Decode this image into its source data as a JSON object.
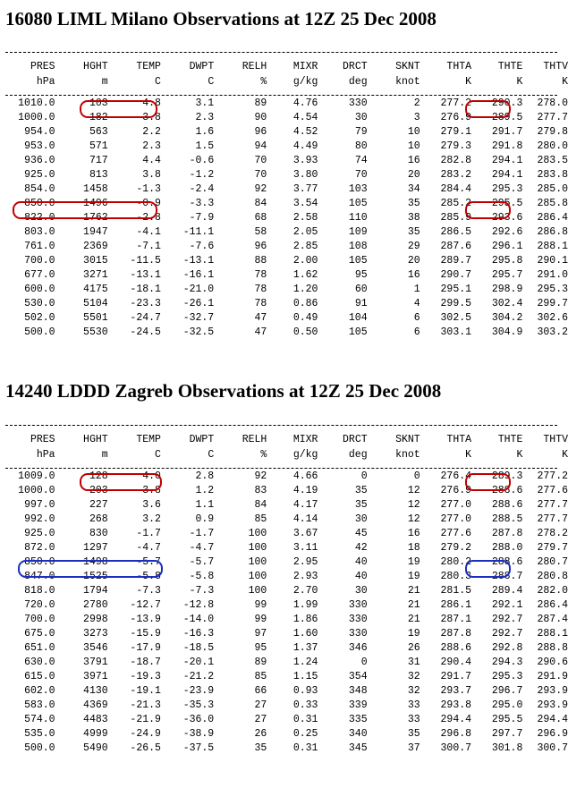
{
  "headers": {
    "row1": [
      "PRES",
      "HGHT",
      "TEMP",
      "DWPT",
      "RELH",
      "MIXR",
      "DRCT",
      "SKNT",
      "THTA",
      "THTE",
      "THTV"
    ],
    "row2": [
      "hPa",
      "m",
      "C",
      "C",
      "%",
      "g/kg",
      "deg",
      "knot",
      "K",
      "K",
      "K"
    ]
  },
  "milano": {
    "title": "16080 LIML Milano Observations at 12Z 25 Dec 2008",
    "rows": [
      [
        "1010.0",
        "103",
        "4.8",
        "3.1",
        "89",
        "4.76",
        "330",
        "2",
        "277.2",
        "290.3",
        "278.0"
      ],
      [
        "1000.0",
        "182",
        "3.8",
        "2.3",
        "90",
        "4.54",
        "30",
        "3",
        "276.9",
        "289.5",
        "277.7"
      ],
      [
        "954.0",
        "563",
        "2.2",
        "1.6",
        "96",
        "4.52",
        "79",
        "10",
        "279.1",
        "291.7",
        "279.8"
      ],
      [
        "953.0",
        "571",
        "2.3",
        "1.5",
        "94",
        "4.49",
        "80",
        "10",
        "279.3",
        "291.8",
        "280.0"
      ],
      [
        "936.0",
        "717",
        "4.4",
        "-0.6",
        "70",
        "3.93",
        "74",
        "16",
        "282.8",
        "294.1",
        "283.5"
      ],
      [
        "925.0",
        "813",
        "3.8",
        "-1.2",
        "70",
        "3.80",
        "70",
        "20",
        "283.2",
        "294.1",
        "283.8"
      ],
      [
        "854.0",
        "1458",
        "-1.3",
        "-2.4",
        "92",
        "3.77",
        "103",
        "34",
        "284.4",
        "295.3",
        "285.0"
      ],
      [
        "850.0",
        "1496",
        "-0.9",
        "-3.3",
        "84",
        "3.54",
        "105",
        "35",
        "285.2",
        "295.5",
        "285.8"
      ],
      [
        "822.0",
        "1762",
        "-2.8",
        "-7.9",
        "68",
        "2.58",
        "110",
        "38",
        "285.9",
        "293.6",
        "286.4"
      ],
      [
        "803.0",
        "1947",
        "-4.1",
        "-11.1",
        "58",
        "2.05",
        "109",
        "35",
        "286.5",
        "292.6",
        "286.8"
      ],
      [
        "761.0",
        "2369",
        "-7.1",
        "-7.6",
        "96",
        "2.85",
        "108",
        "29",
        "287.6",
        "296.1",
        "288.1"
      ],
      [
        "700.0",
        "3015",
        "-11.5",
        "-13.1",
        "88",
        "2.00",
        "105",
        "20",
        "289.7",
        "295.8",
        "290.1"
      ],
      [
        "677.0",
        "3271",
        "-13.1",
        "-16.1",
        "78",
        "1.62",
        "95",
        "16",
        "290.7",
        "295.7",
        "291.0"
      ],
      [
        "600.0",
        "4175",
        "-18.1",
        "-21.0",
        "78",
        "1.20",
        "60",
        "1",
        "295.1",
        "298.9",
        "295.3"
      ],
      [
        "530.0",
        "5104",
        "-23.3",
        "-26.1",
        "78",
        "0.86",
        "91",
        "4",
        "299.5",
        "302.4",
        "299.7"
      ],
      [
        "502.0",
        "5501",
        "-24.7",
        "-32.7",
        "47",
        "0.49",
        "104",
        "6",
        "302.5",
        "304.2",
        "302.6"
      ],
      [
        "500.0",
        "5530",
        "-24.5",
        "-32.5",
        "47",
        "0.50",
        "105",
        "6",
        "303.1",
        "304.9",
        "303.2"
      ]
    ]
  },
  "zagreb": {
    "title": "14240 LDDD Zagreb Observations at 12Z 25 Dec 2008",
    "rows": [
      [
        "1009.0",
        "128",
        "4.0",
        "2.8",
        "92",
        "4.66",
        "0",
        "0",
        "276.4",
        "289.3",
        "277.2"
      ],
      [
        "1000.0",
        "203",
        "3.8",
        "1.2",
        "83",
        "4.19",
        "35",
        "12",
        "276.9",
        "288.6",
        "277.6"
      ],
      [
        "997.0",
        "227",
        "3.6",
        "1.1",
        "84",
        "4.17",
        "35",
        "12",
        "277.0",
        "288.6",
        "277.7"
      ],
      [
        "992.0",
        "268",
        "3.2",
        "0.9",
        "85",
        "4.14",
        "30",
        "12",
        "277.0",
        "288.5",
        "277.7"
      ],
      [
        "925.0",
        "830",
        "-1.7",
        "-1.7",
        "100",
        "3.67",
        "45",
        "16",
        "277.6",
        "287.8",
        "278.2"
      ],
      [
        "872.0",
        "1297",
        "-4.7",
        "-4.7",
        "100",
        "3.11",
        "42",
        "18",
        "279.2",
        "288.0",
        "279.7"
      ],
      [
        "850.0",
        "1498",
        "-5.7",
        "-5.7",
        "100",
        "2.95",
        "40",
        "19",
        "280.2",
        "288.6",
        "280.7"
      ],
      [
        "847.0",
        "1525",
        "-5.8",
        "-5.8",
        "100",
        "2.93",
        "40",
        "19",
        "280.3",
        "288.7",
        "280.8"
      ],
      [
        "818.0",
        "1794",
        "-7.3",
        "-7.3",
        "100",
        "2.70",
        "30",
        "21",
        "281.5",
        "289.4",
        "282.0"
      ],
      [
        "720.0",
        "2780",
        "-12.7",
        "-12.8",
        "99",
        "1.99",
        "330",
        "21",
        "286.1",
        "292.1",
        "286.4"
      ],
      [
        "700.0",
        "2998",
        "-13.9",
        "-14.0",
        "99",
        "1.86",
        "330",
        "21",
        "287.1",
        "292.7",
        "287.4"
      ],
      [
        "675.0",
        "3273",
        "-15.9",
        "-16.3",
        "97",
        "1.60",
        "330",
        "19",
        "287.8",
        "292.7",
        "288.1"
      ],
      [
        "651.0",
        "3546",
        "-17.9",
        "-18.5",
        "95",
        "1.37",
        "346",
        "26",
        "288.6",
        "292.8",
        "288.8"
      ],
      [
        "630.0",
        "3791",
        "-18.7",
        "-20.1",
        "89",
        "1.24",
        "0",
        "31",
        "290.4",
        "294.3",
        "290.6"
      ],
      [
        "615.0",
        "3971",
        "-19.3",
        "-21.2",
        "85",
        "1.15",
        "354",
        "32",
        "291.7",
        "295.3",
        "291.9"
      ],
      [
        "602.0",
        "4130",
        "-19.1",
        "-23.9",
        "66",
        "0.93",
        "348",
        "32",
        "293.7",
        "296.7",
        "293.9"
      ],
      [
        "583.0",
        "4369",
        "-21.3",
        "-35.3",
        "27",
        "0.33",
        "339",
        "33",
        "293.8",
        "295.0",
        "293.9"
      ],
      [
        "574.0",
        "4483",
        "-21.9",
        "-36.0",
        "27",
        "0.31",
        "335",
        "33",
        "294.4",
        "295.5",
        "294.4"
      ],
      [
        "535.0",
        "4999",
        "-24.9",
        "-38.9",
        "26",
        "0.25",
        "340",
        "35",
        "296.8",
        "297.7",
        "296.9"
      ],
      [
        "500.0",
        "5490",
        "-26.5",
        "-37.5",
        "35",
        "0.31",
        "345",
        "37",
        "300.7",
        "301.8",
        "300.7"
      ]
    ]
  },
  "colors": {
    "highlight_red": "#c00000",
    "highlight_blue": "#1a2fbf"
  }
}
